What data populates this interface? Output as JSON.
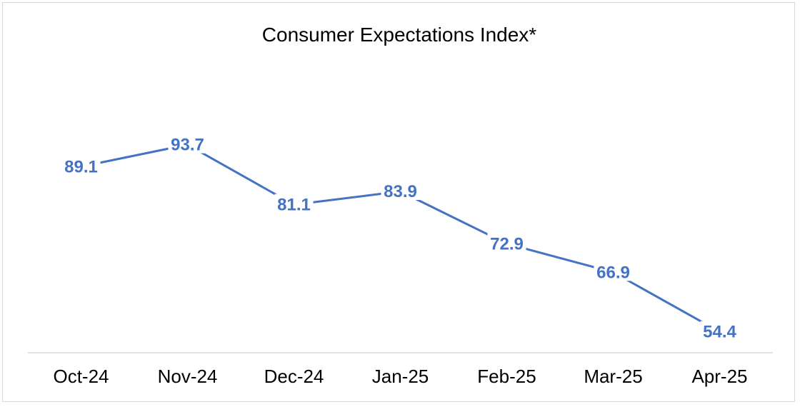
{
  "chart_data": {
    "type": "line",
    "title": "Consumer Expectations Index*",
    "xlabel": "",
    "ylabel": "",
    "categories": [
      "Oct-24",
      "Nov-24",
      "Dec-24",
      "Jan-25",
      "Feb-25",
      "Mar-25",
      "Apr-25"
    ],
    "series": [
      {
        "values": [
          89.1,
          93.7,
          81.1,
          83.9,
          72.9,
          66.9,
          54.4
        ],
        "labels": [
          "89.1",
          "93.7",
          "81.1",
          "83.9",
          "72.9",
          "66.9",
          "54.4"
        ]
      }
    ],
    "ylim": [
      50,
      110
    ],
    "grid": false,
    "legend": "none",
    "colors": {
      "line": "#4472C4",
      "axis": "#d9d9d9",
      "text": "#000000"
    }
  }
}
